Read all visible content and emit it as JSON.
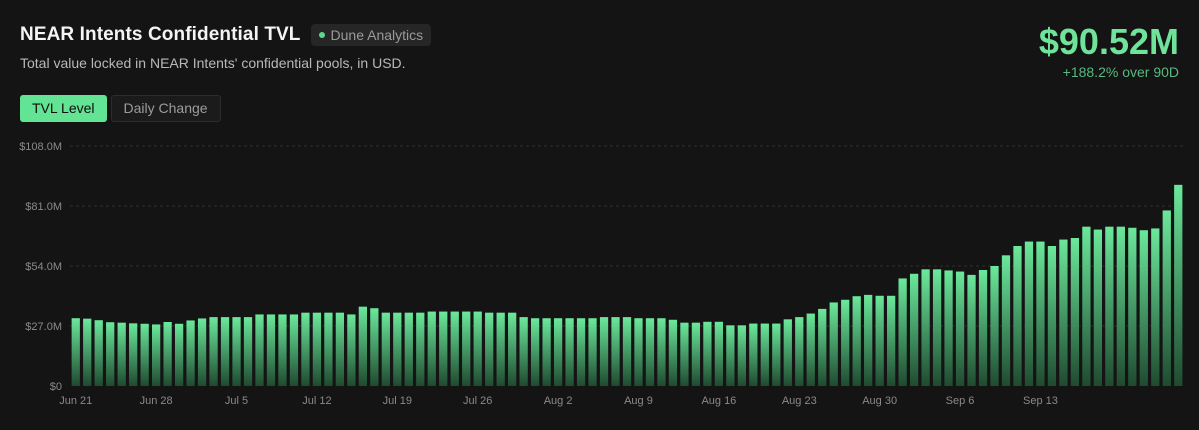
{
  "header": {
    "title": "NEAR Intents Confidential TVL",
    "source_badge": "Dune Analytics",
    "subtitle": "Total value locked in NEAR Intents' confidential pools, in USD."
  },
  "kpi": {
    "value": "$90.52M",
    "change": "+188.2% over 90D"
  },
  "tabs": [
    {
      "label": "TVL Level",
      "active": true
    },
    {
      "label": "Daily Change",
      "active": false
    }
  ],
  "colors": {
    "accent": "#63e394",
    "bar_top": "#6be89b",
    "bar_bottom": "#1f4a30",
    "background": "#141414"
  },
  "chart_data": {
    "type": "bar",
    "title": "",
    "xlabel": "",
    "ylabel": "",
    "ylim": [
      0,
      108
    ],
    "unit": "$M",
    "y_ticks": [
      "$0",
      "$27.0M",
      "$54.0M",
      "$81.0M",
      "$108.0M"
    ],
    "y_tick_values": [
      0,
      27,
      54,
      81,
      108
    ],
    "grid": true,
    "x_tick_labels": [
      "Jun 21",
      "Jun 28",
      "Jul 5",
      "Jul 12",
      "Jul 19",
      "Jul 26",
      "Aug 2",
      "Aug 9",
      "Aug 16",
      "Aug 23",
      "Aug 30",
      "Sep 6",
      "Sep 13"
    ],
    "x_tick_index": [
      0,
      7,
      14,
      21,
      28,
      35,
      42,
      49,
      56,
      63,
      70,
      77,
      84
    ],
    "start_label": "Jun 21",
    "values": [
      30.5,
      30.3,
      29.6,
      28.7,
      28.5,
      28.2,
      28.0,
      27.7,
      28.8,
      28.0,
      29.5,
      30.4,
      31.0,
      31.0,
      31.0,
      31.0,
      32.2,
      32.2,
      32.2,
      32.2,
      33.0,
      33.0,
      33.0,
      33.0,
      32.2,
      35.7,
      35.0,
      33.0,
      33.0,
      33.0,
      33.0,
      33.5,
      33.5,
      33.5,
      33.5,
      33.5,
      33.0,
      33.0,
      33.0,
      31.0,
      30.5,
      30.5,
      30.5,
      30.5,
      30.5,
      30.5,
      31.0,
      31.0,
      31.0,
      30.5,
      30.5,
      30.5,
      29.8,
      28.5,
      28.5,
      28.9,
      28.9,
      27.3,
      27.3,
      28.1,
      28.1,
      28.1,
      30.0,
      31.0,
      32.6,
      34.7,
      37.6,
      38.8,
      40.4,
      41.0,
      40.6,
      40.6,
      48.4,
      50.5,
      52.5,
      52.5,
      52.0,
      51.5,
      50.0,
      52.2,
      54.0,
      58.8,
      63.0,
      65.0,
      65.0,
      63.0,
      65.9,
      66.6,
      71.7,
      70.4,
      71.7,
      71.7,
      71.2,
      70.1,
      70.9,
      79.0,
      90.52
    ]
  }
}
